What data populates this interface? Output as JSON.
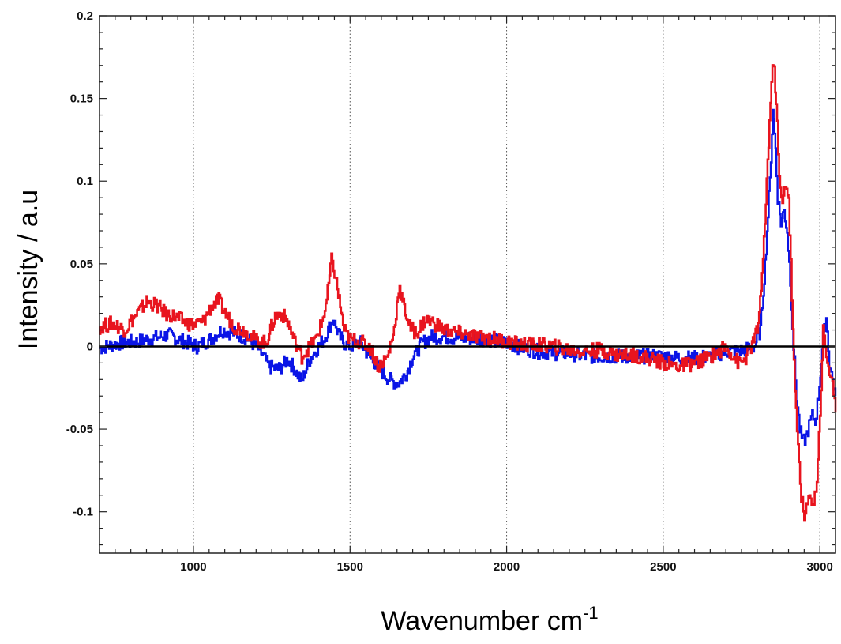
{
  "chart_data": {
    "type": "line",
    "xlabel": "Wavenumber cm",
    "xlabel_superscript": "-1",
    "ylabel": "Intensity / a.u",
    "xlim": [
      700,
      3050
    ],
    "ylim": [
      -0.125,
      0.2
    ],
    "x_ticks": [
      {
        "value": 1000,
        "label": "1000"
      },
      {
        "value": 1500,
        "label": "1500"
      },
      {
        "value": 2000,
        "label": "2000"
      },
      {
        "value": 2500,
        "label": "2500"
      },
      {
        "value": 3000,
        "label": "3000"
      }
    ],
    "y_ticks": [
      {
        "value": 0.2,
        "label": "0.2"
      },
      {
        "value": 0.15,
        "label": "0.15"
      },
      {
        "value": 0.1,
        "label": "0.1"
      },
      {
        "value": 0.05,
        "label": "0.05"
      },
      {
        "value": 0,
        "label": "0"
      },
      {
        "value": -0.05,
        "label": "-0.05"
      },
      {
        "value": -0.1,
        "label": "-0.1"
      }
    ],
    "vertical_gridlines": [
      1000,
      1500,
      2000,
      2500,
      3000
    ],
    "grid_style": "dotted vertical",
    "zero_line": true,
    "series": [
      {
        "color": "#0a14e6",
        "x": [
          700,
          760,
          820,
          870,
          920,
          970,
          1010,
          1050,
          1090,
          1130,
          1170,
          1210,
          1240,
          1270,
          1300,
          1320,
          1345,
          1370,
          1395,
          1420,
          1445,
          1460,
          1480,
          1500,
          1530,
          1560,
          1600,
          1630,
          1655,
          1680,
          1700,
          1730,
          1760,
          1800,
          1850,
          1900,
          1950,
          2000,
          2050,
          2100,
          2150,
          2200,
          2250,
          2300,
          2350,
          2400,
          2450,
          2500,
          2550,
          2600,
          2650,
          2700,
          2730,
          2760,
          2790,
          2810,
          2825,
          2840,
          2850,
          2858,
          2865,
          2875,
          2885,
          2895,
          2905,
          2915,
          2925,
          2935,
          2945,
          2955,
          2965,
          2975,
          2985,
          2995,
          3010,
          3020,
          3030,
          3040,
          3050
        ],
        "y": [
          -0.001,
          0.002,
          0.003,
          0.005,
          0.007,
          0.003,
          0.0,
          0.004,
          0.01,
          0.008,
          0.005,
          -0.002,
          -0.012,
          -0.014,
          -0.008,
          -0.013,
          -0.021,
          -0.008,
          -0.001,
          0.006,
          0.017,
          0.008,
          0.002,
          0.0,
          0.003,
          -0.006,
          -0.015,
          -0.021,
          -0.022,
          -0.016,
          -0.006,
          0.002,
          0.006,
          0.006,
          0.005,
          0.005,
          0.004,
          0.002,
          -0.001,
          -0.003,
          -0.004,
          -0.004,
          -0.006,
          -0.006,
          -0.006,
          -0.006,
          -0.006,
          -0.006,
          -0.007,
          -0.007,
          -0.006,
          -0.003,
          -0.003,
          -0.002,
          0.0,
          0.01,
          0.05,
          0.1,
          0.145,
          0.12,
          0.09,
          0.075,
          0.082,
          0.07,
          0.04,
          0.0,
          -0.03,
          -0.05,
          -0.058,
          -0.055,
          -0.048,
          -0.042,
          -0.045,
          -0.03,
          0.005,
          0.018,
          -0.01,
          -0.02,
          -0.03
        ]
      },
      {
        "color": "#e8141e",
        "x": [
          700,
          740,
          780,
          820,
          850,
          880,
          910,
          940,
          970,
          1000,
          1030,
          1060,
          1080,
          1100,
          1130,
          1160,
          1200,
          1230,
          1260,
          1280,
          1300,
          1320,
          1345,
          1370,
          1390,
          1410,
          1425,
          1440,
          1450,
          1465,
          1480,
          1500,
          1530,
          1560,
          1590,
          1620,
          1640,
          1655,
          1670,
          1690,
          1710,
          1740,
          1760,
          1800,
          1850,
          1900,
          1950,
          2000,
          2050,
          2100,
          2150,
          2200,
          2250,
          2300,
          2350,
          2400,
          2450,
          2500,
          2550,
          2600,
          2650,
          2700,
          2720,
          2740,
          2760,
          2780,
          2800,
          2815,
          2830,
          2845,
          2852,
          2860,
          2870,
          2880,
          2890,
          2900,
          2910,
          2920,
          2930,
          2940,
          2950,
          2960,
          2970,
          2980,
          2990,
          3000,
          3010,
          3020,
          3030,
          3040,
          3050
        ],
        "y": [
          0.012,
          0.014,
          0.01,
          0.02,
          0.027,
          0.025,
          0.02,
          0.018,
          0.015,
          0.013,
          0.015,
          0.025,
          0.028,
          0.02,
          0.012,
          0.01,
          0.004,
          0.002,
          0.018,
          0.02,
          0.015,
          0.004,
          -0.006,
          0.0,
          0.004,
          0.015,
          0.028,
          0.052,
          0.045,
          0.028,
          0.01,
          0.004,
          0.003,
          0.0,
          -0.012,
          -0.006,
          0.01,
          0.036,
          0.025,
          0.012,
          0.008,
          0.016,
          0.015,
          0.01,
          0.008,
          0.006,
          0.005,
          0.003,
          0.001,
          0.001,
          0.0,
          -0.002,
          -0.003,
          -0.002,
          -0.005,
          -0.005,
          -0.007,
          -0.01,
          -0.012,
          -0.01,
          -0.006,
          0.0,
          -0.005,
          -0.01,
          -0.008,
          0.0,
          0.01,
          0.04,
          0.1,
          0.16,
          0.173,
          0.15,
          0.1,
          0.085,
          0.1,
          0.09,
          0.03,
          -0.03,
          -0.06,
          -0.09,
          -0.105,
          -0.095,
          -0.09,
          -0.095,
          -0.08,
          -0.04,
          0.01,
          -0.005,
          -0.015,
          -0.025,
          -0.04
        ]
      }
    ]
  }
}
